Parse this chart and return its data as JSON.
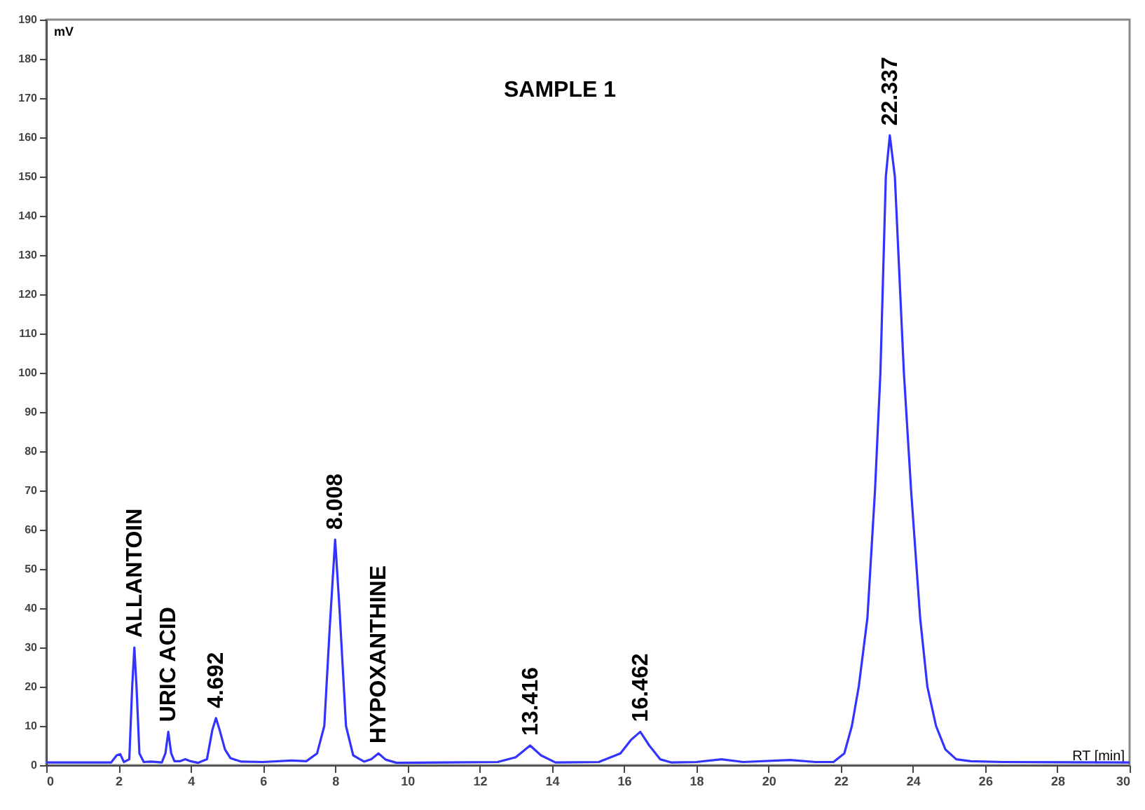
{
  "chart_data": {
    "type": "line",
    "title": "SAMPLE 1",
    "xlabel": "RT [min]",
    "ylabel": "mV",
    "xlim": [
      0,
      30
    ],
    "xticks": [
      0,
      2,
      4,
      6,
      8,
      10,
      12,
      14,
      16,
      18,
      20,
      22,
      24,
      26,
      28,
      30
    ],
    "ylim": [
      0,
      190
    ],
    "yticks": [
      0,
      10,
      20,
      30,
      40,
      50,
      60,
      70,
      80,
      90,
      100,
      110,
      120,
      130,
      140,
      150,
      160,
      170,
      180,
      190
    ],
    "grid": false,
    "marker": "none",
    "line_style": "solid",
    "x": [
      0,
      1.8,
      1.95,
      2.05,
      2.15,
      2.3,
      2.38,
      2.44,
      2.5,
      2.58,
      2.7,
      2.9,
      3.2,
      3.3,
      3.38,
      3.46,
      3.55,
      3.7,
      3.85,
      4.0,
      4.2,
      4.45,
      4.6,
      4.7,
      4.8,
      4.95,
      5.1,
      5.4,
      6.0,
      6.8,
      7.2,
      7.5,
      7.7,
      7.85,
      8.0,
      8.12,
      8.3,
      8.5,
      8.8,
      9.0,
      9.2,
      9.4,
      9.7,
      11,
      12.5,
      13.0,
      13.4,
      13.7,
      14.1,
      15.3,
      15.9,
      16.2,
      16.45,
      16.7,
      17.0,
      17.3,
      18,
      18.7,
      19.3,
      20.6,
      21.3,
      21.8,
      22.1,
      22.31,
      22.5,
      22.74,
      22.95,
      23.1,
      23.25,
      23.36,
      23.5,
      23.75,
      23.95,
      24.2,
      24.4,
      24.64,
      24.9,
      25.2,
      25.6,
      26.5,
      30
    ],
    "series": [
      {
        "color": "#3333ff",
        "values": [
          0.7,
          0.7,
          2.5,
          2.8,
          0.8,
          1.5,
          20,
          30,
          20,
          3,
          0.8,
          0.9,
          0.7,
          3,
          8.5,
          3,
          1.0,
          1.0,
          1.5,
          1.0,
          0.6,
          1.5,
          9,
          12,
          9,
          4,
          1.8,
          0.9,
          0.8,
          1.2,
          1.0,
          3,
          10,
          35,
          57.5,
          40,
          10,
          2.5,
          0.9,
          1.5,
          3,
          1.4,
          0.6,
          0.7,
          0.8,
          2,
          5,
          2.5,
          0.7,
          0.8,
          3,
          6.5,
          8.5,
          5,
          1.5,
          0.7,
          0.8,
          1.5,
          0.8,
          1.3,
          0.8,
          0.8,
          3,
          10,
          20,
          37.5,
          70,
          100,
          150,
          160.5,
          150,
          100,
          70,
          37.5,
          20,
          10,
          4,
          1.5,
          1.0,
          0.8,
          0.7
        ]
      }
    ],
    "annotations": [
      {
        "text": "ALLANTOIN",
        "x": 2.44,
        "y": 30
      },
      {
        "text": "URIC ACID",
        "x": 3.38,
        "y": 8.5
      },
      {
        "text": "4.692",
        "x": 4.7,
        "y": 12
      },
      {
        "text": "8.008",
        "x": 8.0,
        "y": 57.5
      },
      {
        "text": "HYPOXANTHINE",
        "x": 9.2,
        "y": 3
      },
      {
        "text": "13.416",
        "x": 13.4,
        "y": 5
      },
      {
        "text": "16.462",
        "x": 16.45,
        "y": 8.5
      },
      {
        "text": "22.337",
        "x": 23.36,
        "y": 160.5
      }
    ]
  }
}
